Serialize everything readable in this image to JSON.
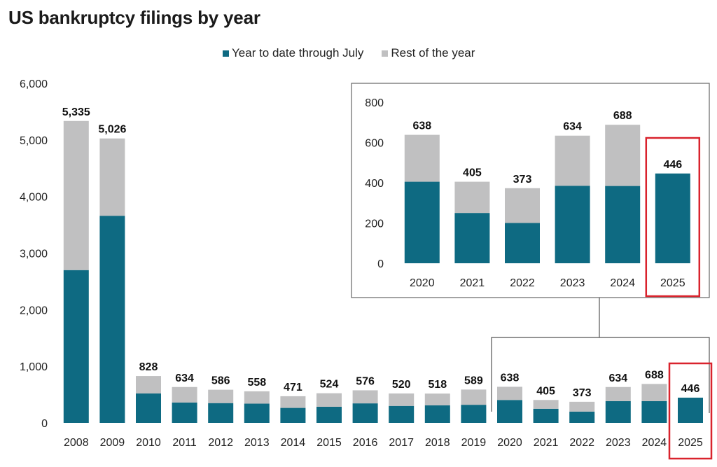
{
  "title": "US bankruptcy filings by year",
  "colors": {
    "ytd": "#0e6a82",
    "rest": "#c0c0c1",
    "highlight": "#d9232d",
    "connector": "#555555",
    "inset_border": "#666666"
  },
  "chart_data": [
    {
      "type": "bar",
      "stacked": true,
      "title": "US bankruptcy filings by year",
      "legend": [
        "Year to date through July",
        "Rest of the year"
      ],
      "legend_position": "top",
      "categories": [
        "2008",
        "2009",
        "2010",
        "2011",
        "2012",
        "2013",
        "2014",
        "2015",
        "2016",
        "2017",
        "2018",
        "2019",
        "2020",
        "2021",
        "2022",
        "2023",
        "2024",
        "2025"
      ],
      "totals": [
        5335,
        5026,
        828,
        634,
        586,
        558,
        471,
        524,
        576,
        520,
        518,
        589,
        638,
        405,
        373,
        634,
        688,
        446
      ],
      "total_labels": [
        "5,335",
        "5,026",
        "828",
        "634",
        "586",
        "558",
        "471",
        "524",
        "576",
        "520",
        "518",
        "589",
        "638",
        "405",
        "373",
        "634",
        "688",
        "446"
      ],
      "series": [
        {
          "name": "Year to date through July",
          "values": [
            2700,
            3660,
            520,
            360,
            350,
            340,
            265,
            285,
            345,
            300,
            310,
            320,
            405,
            250,
            200,
            385,
            384,
            446
          ]
        },
        {
          "name": "Rest of the year",
          "values": [
            2635,
            1366,
            308,
            274,
            236,
            218,
            206,
            239,
            231,
            220,
            208,
            269,
            233,
            155,
            173,
            249,
            304,
            0
          ]
        }
      ],
      "ylim": [
        0,
        6000
      ],
      "yticks": [
        0,
        1000,
        2000,
        3000,
        4000,
        5000,
        6000
      ],
      "ytick_labels": [
        "0",
        "1,000",
        "2,000",
        "3,000",
        "4,000",
        "5,000",
        "6,000"
      ],
      "highlighted_category": "2025"
    },
    {
      "type": "bar",
      "stacked": true,
      "inset": true,
      "categories": [
        "2020",
        "2021",
        "2022",
        "2023",
        "2024",
        "2025"
      ],
      "totals": [
        638,
        405,
        373,
        634,
        688,
        446
      ],
      "total_labels": [
        "638",
        "405",
        "373",
        "634",
        "688",
        "446"
      ],
      "series": [
        {
          "name": "Year to date through July",
          "values": [
            405,
            250,
            200,
            385,
            384,
            446
          ]
        },
        {
          "name": "Rest of the year",
          "values": [
            233,
            155,
            173,
            249,
            304,
            0
          ]
        }
      ],
      "ylim": [
        0,
        800
      ],
      "yticks": [
        0,
        200,
        400,
        600,
        800
      ],
      "ytick_labels": [
        "0",
        "200",
        "400",
        "600",
        "800"
      ],
      "highlighted_category": "2025"
    }
  ]
}
